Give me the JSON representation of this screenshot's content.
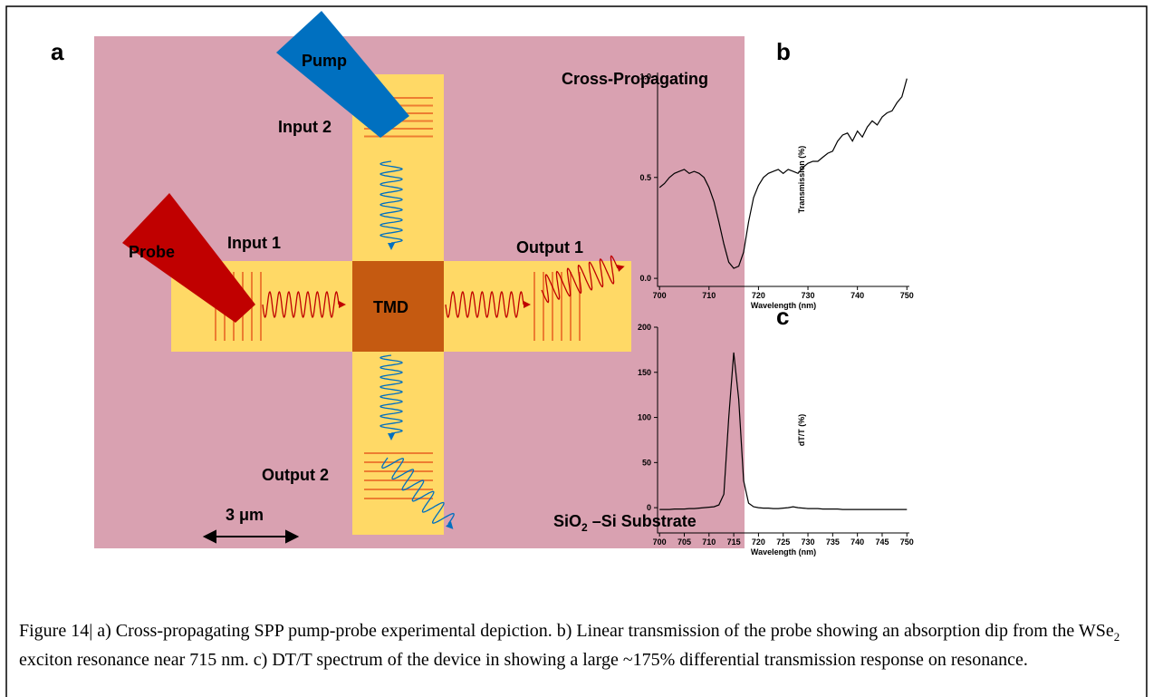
{
  "figure": {
    "panels": [
      "a",
      "b",
      "c"
    ],
    "diagram": {
      "pump": "Pump",
      "input_2": "Input 2",
      "mode": "Cross-Propagating",
      "probe": "Probe",
      "input_1": "Input 1",
      "output_1": "Output 1",
      "tmd": "TMD",
      "output_2": "Output 2",
      "scale": "3 μm",
      "substrate": [
        "SiO",
        "2",
        " –Si Substrate"
      ]
    },
    "caption": [
      "Figure 14| a) Cross-propagating SPP pump-probe experimental depiction. b) Linear transmission of the probe showing an absorption dip from the WSe",
      "2",
      " exciton resonance near 715 nm. c) DT/T spectrum of the device in showing a large ~175% differential transmission response on resonance."
    ]
  },
  "chart_data": [
    {
      "type": "line",
      "xlabel": "Wavelength (nm)",
      "ylabel": "Transmission (%)",
      "color": "#000000",
      "x": [
        700,
        701,
        702,
        703,
        704,
        705,
        706,
        707,
        708,
        709,
        710,
        711,
        712,
        713,
        714,
        715,
        716,
        717,
        718,
        719,
        720,
        721,
        722,
        723,
        724,
        725,
        726,
        727,
        728,
        729,
        730,
        731,
        732,
        733,
        734,
        735,
        736,
        737,
        738,
        739,
        740,
        741,
        742,
        743,
        744,
        745,
        746,
        747,
        748,
        749,
        750
      ],
      "values": [
        0.45,
        0.47,
        0.5,
        0.52,
        0.53,
        0.54,
        0.52,
        0.53,
        0.52,
        0.5,
        0.45,
        0.38,
        0.28,
        0.17,
        0.08,
        0.05,
        0.06,
        0.13,
        0.28,
        0.4,
        0.46,
        0.5,
        0.52,
        0.53,
        0.54,
        0.52,
        0.54,
        0.53,
        0.52,
        0.55,
        0.57,
        0.58,
        0.58,
        0.6,
        0.62,
        0.63,
        0.68,
        0.71,
        0.72,
        0.68,
        0.73,
        0.7,
        0.75,
        0.78,
        0.76,
        0.8,
        0.82,
        0.83,
        0.87,
        0.9,
        0.99
      ],
      "xlim": [
        699.6,
        750.5
      ],
      "ylim": [
        -0.04,
        1.02
      ],
      "xticks": [
        700,
        710,
        720,
        730,
        740,
        750
      ],
      "yticks": [
        {
          "value": 0,
          "label": "0.0"
        },
        {
          "value": 0.5,
          "label": "0.5"
        },
        {
          "value": 1,
          "label": "1.0"
        }
      ]
    },
    {
      "type": "line",
      "xlabel": "Wavelength (nm)",
      "ylabel": "dT/T (%)",
      "color": "#000000",
      "x": [
        700,
        701,
        702,
        703,
        704,
        705,
        706,
        707,
        708,
        709,
        710,
        711,
        712,
        713,
        714,
        715,
        716,
        717,
        718,
        719,
        720,
        721,
        722,
        723,
        724,
        725,
        726,
        727,
        728,
        729,
        730,
        731,
        732,
        733,
        734,
        735,
        736,
        737,
        738,
        739,
        740,
        741,
        742,
        743,
        744,
        745,
        746,
        747,
        748,
        749,
        750
      ],
      "values": [
        -2,
        -2,
        -2,
        -1.5,
        -1.5,
        -1.5,
        -1,
        -1,
        -0.5,
        0,
        0.5,
        1,
        3,
        15,
        100,
        172,
        120,
        30,
        5,
        1,
        0,
        -0.5,
        -0.5,
        -1,
        -1,
        -0.5,
        0,
        1,
        0,
        -0.5,
        -1,
        -1,
        -1,
        -1.5,
        -1.5,
        -1.5,
        -1.5,
        -2,
        -2,
        -2,
        -2,
        -2,
        -2,
        -2,
        -2,
        -2,
        -2,
        -2,
        -2,
        -2,
        -2
      ],
      "xlim": [
        699.6,
        750.5
      ],
      "ylim": [
        -28,
        200
      ],
      "xticks": [
        700,
        705,
        710,
        715,
        720,
        725,
        730,
        735,
        740,
        745,
        750
      ],
      "yticks": [
        0,
        50,
        100,
        150,
        200
      ]
    }
  ]
}
